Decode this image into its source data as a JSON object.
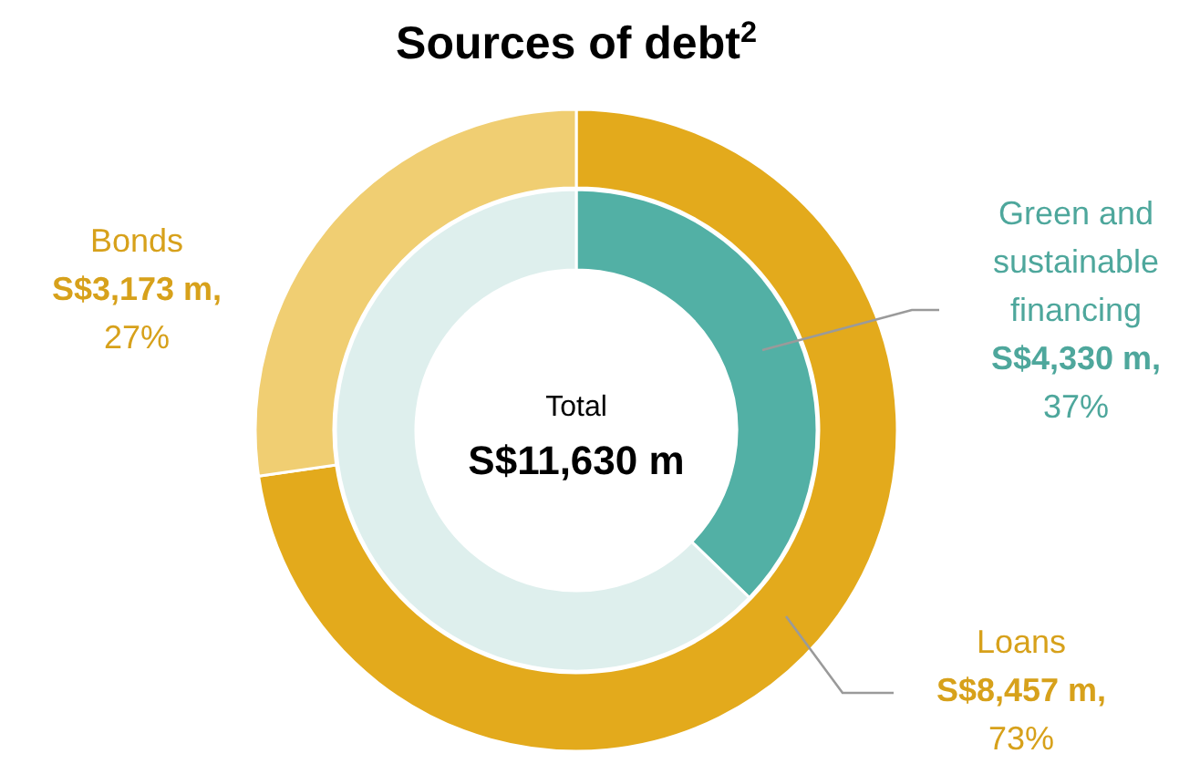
{
  "chart_data": [
    {
      "type": "donut",
      "title": "Sources of debt$^{2}$",
      "categories": [
        "Loans",
        "Bonds"
      ],
      "values": [
        8457,
        3173
      ],
      "colors": [
        "#e3aa1c",
        "#f0ce72"
      ],
      "value_labels": [
        "S$8,457 m,\n73%",
        "S$3,173 m,\n27%"
      ],
      "annotations": [
        "Total",
        "S$11,630 m"
      ]
    },
    {
      "type": "donut",
      "categories": [
        "Green and\nsustainable\nfinancing",
        null
      ],
      "values": [
        4330,
        7300
      ],
      "colors": [
        "#52b0a5",
        "#deefed"
      ],
      "value_labels": [
        "S$4,330 m,\n37%",
        null
      ]
    }
  ]
}
